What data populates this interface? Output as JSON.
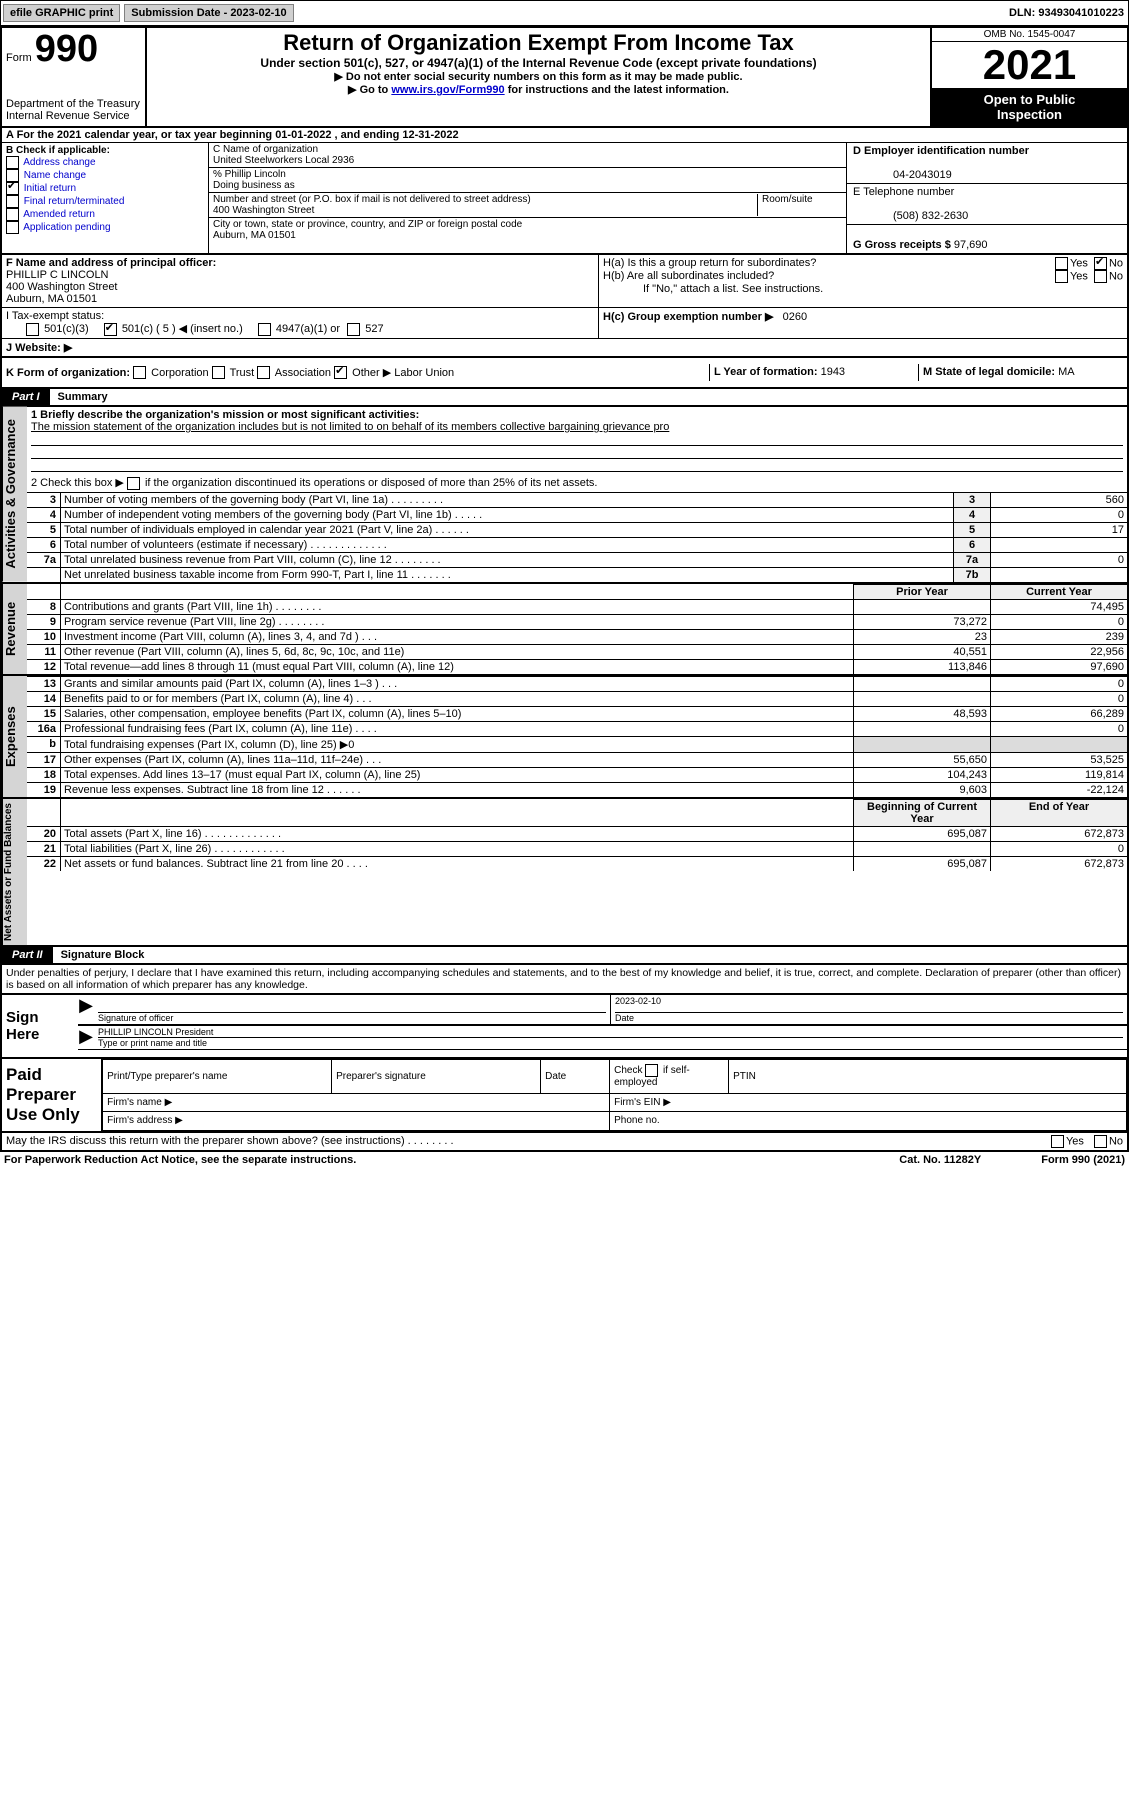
{
  "topbar": {
    "efile_label": "efile GRAPHIC print",
    "sub_label": "Submission Date - 2023-02-10",
    "dln": "DLN: 93493041010223"
  },
  "header": {
    "form_prefix": "Form",
    "form_num": "990",
    "dept": "Department of the Treasury",
    "irs": "Internal Revenue Service",
    "title": "Return of Organization Exempt From Income Tax",
    "subtitle": "Under section 501(c), 527, or 4947(a)(1) of the Internal Revenue Code (except private foundations)",
    "instr1": "▶ Do not enter social security numbers on this form as it may be made public.",
    "instr2_pre": "▶ Go to ",
    "instr2_link": "www.irs.gov/Form990",
    "instr2_post": " for instructions and the latest information.",
    "omb": "OMB No. 1545-0047",
    "year": "2021",
    "open1": "Open to Public",
    "open2": "Inspection"
  },
  "period": "A For the 2021 calendar year, or tax year beginning 01-01-2022   , and ending 12-31-2022",
  "boxB": {
    "label": "B Check if applicable:",
    "opts": [
      "Address change",
      "Name change",
      "Initial return",
      "Final return/terminated",
      "Amended return",
      "Application pending"
    ],
    "checked_idx": 2
  },
  "boxC": {
    "label": "C Name of organization",
    "name": "United Steelworkers Local 2936",
    "care_of_label": "% Phillip Lincoln",
    "dba_label": "Doing business as",
    "street_label": "Number and street (or P.O. box if mail is not delivered to street address)",
    "room": "Room/suite",
    "street": "400 Washington Street",
    "city_label": "City or town, state or province, country, and ZIP or foreign postal code",
    "city": "Auburn, MA  01501"
  },
  "boxD": {
    "label": "D Employer identification number",
    "ein": "04-2043019"
  },
  "boxE": {
    "label": "E Telephone number",
    "phone": "(508) 832-2630"
  },
  "boxG": {
    "label": "G Gross receipts $",
    "val": "97,690"
  },
  "boxF": {
    "label": "F  Name and address of principal officer:",
    "name": "PHILLIP C LINCOLN",
    "street": "400 Washington Street",
    "city": "Auburn, MA  01501"
  },
  "boxH": {
    "a": "H(a)  Is this a group return for subordinates?",
    "b": "H(b)  Are all subordinates included?",
    "note": "If \"No,\" attach a list. See instructions.",
    "c": "H(c)  Group exemption number ▶",
    "c_val": "0260",
    "yes": "Yes",
    "no": "No"
  },
  "boxI": {
    "label": "I    Tax-exempt status:",
    "o1": "501(c)(3)",
    "o2": "501(c) ( 5 ) ◀ (insert no.)",
    "o3": "4947(a)(1) or",
    "o4": "527"
  },
  "boxJ": {
    "label": "J    Website: ▶"
  },
  "boxK": {
    "label": "K Form of organization:",
    "o1": "Corporation",
    "o2": "Trust",
    "o3": "Association",
    "o4": "Other ▶",
    "other_val": "Labor Union"
  },
  "boxL": {
    "label": "L Year of formation:",
    "val": "1943"
  },
  "boxM": {
    "label": "M State of legal domicile:",
    "val": "MA"
  },
  "part1": {
    "tab": "Part I",
    "title": "Summary"
  },
  "summary": {
    "q1_label": "1   Briefly describe the organization's mission or most significant activities:",
    "q1_text": "The mission statement of the organization includes but is not limited to on behalf of its members collective bargaining grievance pro",
    "q2": "2   Check this box ▶",
    "q2_post": "if the organization discontinued its operations or disposed of more than 25% of its net assets.",
    "rows_gov": [
      {
        "n": "3",
        "t": "Number of voting members of the governing body (Part VI, line 1a)  .   .   .   .   .   .   .   .   .",
        "box": "3",
        "v": "560"
      },
      {
        "n": "4",
        "t": "Number of independent voting members of the governing body (Part VI, line 1b)  .   .   .   .   .",
        "box": "4",
        "v": "0"
      },
      {
        "n": "5",
        "t": "Total number of individuals employed in calendar year 2021 (Part V, line 2a)  .   .   .   .   .   .",
        "box": "5",
        "v": "17"
      },
      {
        "n": "6",
        "t": "Total number of volunteers (estimate if necessary)  .   .   .   .   .   .   .   .   .   .   .   .   .",
        "box": "6",
        "v": ""
      },
      {
        "n": "7a",
        "t": "Total unrelated business revenue from Part VIII, column (C), line 12  .   .   .   .   .   .   .   .",
        "box": "7a",
        "v": "0"
      },
      {
        "n": "",
        "t": "Net unrelated business taxable income from Form 990-T, Part I, line 11  .   .   .   .   .   .   .",
        "box": "7b",
        "v": ""
      }
    ],
    "col_prior": "Prior Year",
    "col_current": "Current Year",
    "rows_rev": [
      {
        "n": "8",
        "t": "Contributions and grants (Part VIII, line 1h)  .   .   .   .   .   .   .   .",
        "p": "",
        "c": "74,495"
      },
      {
        "n": "9",
        "t": "Program service revenue (Part VIII, line 2g)  .   .   .   .   .   .   .   .",
        "p": "73,272",
        "c": "0"
      },
      {
        "n": "10",
        "t": "Investment income (Part VIII, column (A), lines 3, 4, and 7d )  .   .   .",
        "p": "23",
        "c": "239"
      },
      {
        "n": "11",
        "t": "Other revenue (Part VIII, column (A), lines 5, 6d, 8c, 9c, 10c, and 11e)",
        "p": "40,551",
        "c": "22,956"
      },
      {
        "n": "12",
        "t": "Total revenue—add lines 8 through 11 (must equal Part VIII, column (A), line 12)",
        "p": "113,846",
        "c": "97,690"
      }
    ],
    "rows_exp": [
      {
        "n": "13",
        "t": "Grants and similar amounts paid (Part IX, column (A), lines 1–3 )  .   .   .",
        "p": "",
        "c": "0"
      },
      {
        "n": "14",
        "t": "Benefits paid to or for members (Part IX, column (A), line 4)  .   .   .",
        "p": "",
        "c": "0"
      },
      {
        "n": "15",
        "t": "Salaries, other compensation, employee benefits (Part IX, column (A), lines 5–10)",
        "p": "48,593",
        "c": "66,289"
      },
      {
        "n": "16a",
        "t": "Professional fundraising fees (Part IX, column (A), line 11e)  .   .   .   .",
        "p": "",
        "c": "0"
      },
      {
        "n": "b",
        "t": "Total fundraising expenses (Part IX, column (D), line 25) ▶0",
        "p": "shade",
        "c": "shade"
      },
      {
        "n": "17",
        "t": "Other expenses (Part IX, column (A), lines 11a–11d, 11f–24e) .   .   .",
        "p": "55,650",
        "c": "53,525"
      },
      {
        "n": "18",
        "t": "Total expenses. Add lines 13–17 (must equal Part IX, column (A), line 25)",
        "p": "104,243",
        "c": "119,814"
      },
      {
        "n": "19",
        "t": "Revenue less expenses. Subtract line 18 from line 12 .   .   .   .   .   .",
        "p": "9,603",
        "c": "-22,124"
      }
    ],
    "col_begin": "Beginning of Current Year",
    "col_end": "End of Year",
    "rows_net": [
      {
        "n": "20",
        "t": "Total assets (Part X, line 16) .   .   .   .   .   .   .   .   .   .   .   .   .",
        "p": "695,087",
        "c": "672,873"
      },
      {
        "n": "21",
        "t": "Total liabilities (Part X, line 26) .   .   .   .   .   .   .   .   .   .   .   .",
        "p": "",
        "c": "0"
      },
      {
        "n": "22",
        "t": "Net assets or fund balances. Subtract line 21 from line 20 .   .   .   .",
        "p": "695,087",
        "c": "672,873"
      }
    ]
  },
  "vert_labels": {
    "gov": "Activities & Governance",
    "rev": "Revenue",
    "exp": "Expenses",
    "net": "Net Assets or Fund Balances"
  },
  "part2": {
    "tab": "Part II",
    "title": "Signature Block"
  },
  "sig": {
    "decl": "Under penalties of perjury, I declare that I have examined this return, including accompanying schedules and statements, and to the best of my knowledge and belief, it is true, correct, and complete. Declaration of preparer (other than officer) is based on all information of which preparer has any knowledge.",
    "sign_here": "Sign Here",
    "sig_officer": "Signature of officer",
    "date_lbl": "Date",
    "date_val": "2023-02-10",
    "name": "PHILLIP LINCOLN  President",
    "name_lbl": "Type or print name and title"
  },
  "prep": {
    "label": "Paid Preparer Use Only",
    "h1": "Print/Type preparer's name",
    "h2": "Preparer's signature",
    "h3": "Date",
    "h4a": "Check",
    "h4b": "if self-employed",
    "h5": "PTIN",
    "firm_name": "Firm's name   ▶",
    "firm_ein": "Firm's EIN ▶",
    "firm_addr": "Firm's address ▶",
    "phone": "Phone no."
  },
  "footer": {
    "discuss": "May the IRS discuss this return with the preparer shown above? (see instructions)  .   .   .   .   .   .   .   .",
    "yes": "Yes",
    "no": "No",
    "paperwork": "For Paperwork Reduction Act Notice, see the separate instructions.",
    "cat": "Cat. No. 11282Y",
    "form": "Form 990 (2021)"
  },
  "colors": {
    "link": "#0000cc",
    "shade": "#dcdcdc",
    "vert_bg": "#d5d5d5"
  }
}
